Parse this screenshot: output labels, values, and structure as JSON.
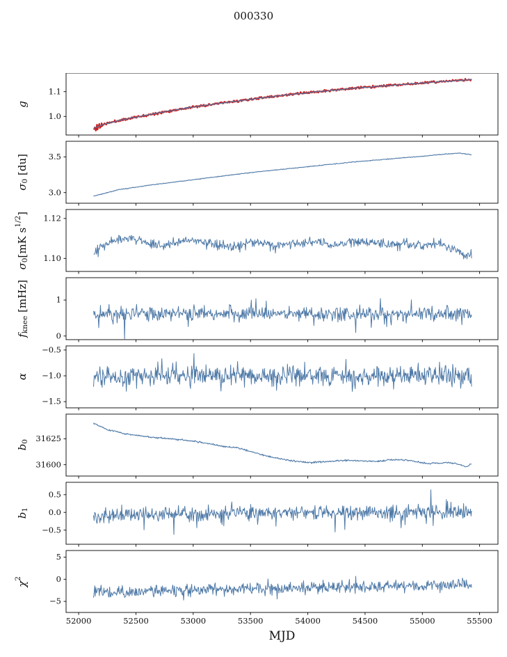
{
  "chart_data": {
    "type": "line",
    "title": "000330",
    "xlabel": "MJD",
    "grid": false,
    "legend": "none",
    "colors": {
      "line": "#4e79a7",
      "red": "#cc1f1f",
      "frame": "#000000"
    },
    "xlim": [
      51890,
      55660
    ],
    "xticks": [
      {
        "v": 52000,
        "label": "52000"
      },
      {
        "v": 52500,
        "label": "52500"
      },
      {
        "v": 53000,
        "label": "53000"
      },
      {
        "v": 53500,
        "label": "53500"
      },
      {
        "v": 54000,
        "label": "54000"
      },
      {
        "v": 54500,
        "label": "54500"
      },
      {
        "v": 55000,
        "label": "55000"
      },
      {
        "v": 55500,
        "label": "55500"
      }
    ],
    "panels": [
      {
        "name": "g",
        "ylabel": {
          "base": "g"
        },
        "ylim": [
          0.925,
          1.175
        ],
        "yticks": [
          {
            "v": 1.0,
            "label": "1.0"
          },
          {
            "v": 1.1,
            "label": "1.1"
          }
        ],
        "series": [
          {
            "name": "data",
            "color": "#cc1f1f",
            "lw": 2.2,
            "seed": 11,
            "amp": 0.0025,
            "amp_start": 0.009,
            "amp_start_until": 52215,
            "base": [
              [
                52130,
                0.948
              ],
              [
                52200,
                0.966
              ],
              [
                52300,
                0.978
              ],
              [
                52450,
                0.993
              ],
              [
                52600,
                1.006
              ],
              [
                52800,
                1.023
              ],
              [
                53000,
                1.038
              ],
              [
                53200,
                1.051
              ],
              [
                53400,
                1.063
              ],
              [
                53600,
                1.075
              ],
              [
                53800,
                1.086
              ],
              [
                54000,
                1.096
              ],
              [
                54200,
                1.105
              ],
              [
                54400,
                1.114
              ],
              [
                54600,
                1.121
              ],
              [
                54800,
                1.128
              ],
              [
                55000,
                1.135
              ],
              [
                55150,
                1.14
              ],
              [
                55300,
                1.145
              ],
              [
                55430,
                1.148
              ]
            ]
          },
          {
            "name": "fit",
            "color": "#4e79a7",
            "lw": 1.1,
            "seed": 12,
            "amp": 0.0012,
            "base": [
              [
                52130,
                0.952
              ],
              [
                52200,
                0.966
              ],
              [
                52300,
                0.978
              ],
              [
                52450,
                0.993
              ],
              [
                52600,
                1.006
              ],
              [
                52800,
                1.023
              ],
              [
                53000,
                1.038
              ],
              [
                53200,
                1.051
              ],
              [
                53400,
                1.063
              ],
              [
                53600,
                1.075
              ],
              [
                53800,
                1.086
              ],
              [
                54000,
                1.096
              ],
              [
                54200,
                1.105
              ],
              [
                54400,
                1.114
              ],
              [
                54600,
                1.121
              ],
              [
                54800,
                1.128
              ],
              [
                55000,
                1.135
              ],
              [
                55150,
                1.14
              ],
              [
                55300,
                1.145
              ],
              [
                55430,
                1.148
              ]
            ]
          }
        ]
      },
      {
        "name": "sigma0_du",
        "ylabel": {
          "base": "σ",
          "sub": "0",
          "mid": " [du]"
        },
        "ylim": [
          2.85,
          3.72
        ],
        "yticks": [
          {
            "v": 3.0,
            "label": "3.0"
          },
          {
            "v": 3.5,
            "label": "3.5"
          }
        ],
        "series": [
          {
            "name": "sigma0",
            "color": "#4e79a7",
            "lw": 1.1,
            "seed": 21,
            "amp": 0.003,
            "base": [
              [
                52130,
                2.95
              ],
              [
                52350,
                3.04
              ],
              [
                52600,
                3.1
              ],
              [
                52900,
                3.16
              ],
              [
                53200,
                3.22
              ],
              [
                53500,
                3.28
              ],
              [
                53800,
                3.33
              ],
              [
                54100,
                3.38
              ],
              [
                54400,
                3.43
              ],
              [
                54700,
                3.47
              ],
              [
                55000,
                3.51
              ],
              [
                55200,
                3.54
              ],
              [
                55320,
                3.555
              ],
              [
                55430,
                3.53
              ]
            ]
          }
        ]
      },
      {
        "name": "sigma0_mks",
        "ylabel": {
          "base": "σ",
          "sub": "0",
          "mid": "[mK s",
          "sup": "1/2",
          "tail": "]"
        },
        "ylim": [
          1.0935,
          1.1245
        ],
        "yticks": [
          {
            "v": 1.1,
            "label": "1.10"
          },
          {
            "v": 1.12,
            "label": "1.12"
          }
        ],
        "series": [
          {
            "name": "sigma0",
            "color": "#4e79a7",
            "lw": 1.0,
            "seed": 31,
            "amp": 0.0013,
            "spike_prob": 0.03,
            "spike_amp": 0.004,
            "spike_dir": -1,
            "base": [
              [
                52130,
                1.1015
              ],
              [
                52200,
                1.106
              ],
              [
                52300,
                1.1095
              ],
              [
                52450,
                1.1105
              ],
              [
                52600,
                1.108
              ],
              [
                52750,
                1.106
              ],
              [
                52900,
                1.1085
              ],
              [
                53050,
                1.109
              ],
              [
                53200,
                1.107
              ],
              [
                53350,
                1.1055
              ],
              [
                53500,
                1.1085
              ],
              [
                53650,
                1.107
              ],
              [
                53800,
                1.1065
              ],
              [
                53950,
                1.108
              ],
              [
                54100,
                1.1085
              ],
              [
                54250,
                1.107
              ],
              [
                54400,
                1.108
              ],
              [
                54550,
                1.1085
              ],
              [
                54700,
                1.107
              ],
              [
                54850,
                1.1075
              ],
              [
                55000,
                1.1065
              ],
              [
                55150,
                1.108
              ],
              [
                55280,
                1.105
              ],
              [
                55370,
                1.102
              ],
              [
                55430,
                1.1015
              ]
            ]
          }
        ]
      },
      {
        "name": "fknee",
        "ylabel": {
          "base": "f",
          "sub": "knee",
          "mid": " [mHz]"
        },
        "ylim": [
          -0.1,
          1.62
        ],
        "yticks": [
          {
            "v": 0,
            "label": "0"
          },
          {
            "v": 1,
            "label": "1"
          }
        ],
        "series": [
          {
            "name": "fknee",
            "color": "#4e79a7",
            "lw": 1.0,
            "seed": 41,
            "amp": 0.12,
            "spike_prob": 0.04,
            "spike_amp": 0.45,
            "base": [
              [
                52130,
                0.6
              ],
              [
                53000,
                0.63
              ],
              [
                54000,
                0.62
              ],
              [
                55430,
                0.63
              ]
            ]
          }
        ]
      },
      {
        "name": "alpha",
        "ylabel": {
          "base": "α"
        },
        "ylim": [
          -1.62,
          -0.42
        ],
        "yticks": [
          {
            "v": -1.5,
            "label": "−1.5"
          },
          {
            "v": -1.0,
            "label": "−1.0"
          },
          {
            "v": -0.5,
            "label": "−0.5"
          }
        ],
        "series": [
          {
            "name": "alpha",
            "color": "#4e79a7",
            "lw": 1.0,
            "seed": 51,
            "amp": 0.11,
            "spike_prob": 0.05,
            "spike_amp": 0.3,
            "base": [
              [
                52130,
                -1.0
              ],
              [
                55430,
                -1.0
              ]
            ]
          }
        ]
      },
      {
        "name": "b0",
        "ylabel": {
          "base": "b",
          "sub": "0"
        },
        "ylim": [
          31589,
          31649
        ],
        "yticks": [
          {
            "v": 31600,
            "label": "31600"
          },
          {
            "v": 31625,
            "label": "31625"
          }
        ],
        "series": [
          {
            "name": "b0",
            "color": "#4e79a7",
            "lw": 1.1,
            "seed": 61,
            "amp": 0.45,
            "base": [
              [
                52130,
                31640
              ],
              [
                52250,
                31634
              ],
              [
                52400,
                31630
              ],
              [
                52600,
                31627
              ],
              [
                52800,
                31625
              ],
              [
                53000,
                31623
              ],
              [
                53100,
                31621
              ],
              [
                53250,
                31618
              ],
              [
                53400,
                31616
              ],
              [
                53550,
                31611
              ],
              [
                53700,
                31607
              ],
              [
                53850,
                31604
              ],
              [
                54000,
                31602
              ],
              [
                54150,
                31603
              ],
              [
                54300,
                31604
              ],
              [
                54450,
                31604
              ],
              [
                54600,
                31603
              ],
              [
                54750,
                31605
              ],
              [
                54900,
                31604
              ],
              [
                55050,
                31601
              ],
              [
                55200,
                31602
              ],
              [
                55300,
                31601
              ],
              [
                55380,
                31598
              ],
              [
                55430,
                31601
              ]
            ]
          }
        ]
      },
      {
        "name": "b1",
        "ylabel": {
          "base": "b",
          "sub": "1"
        },
        "ylim": [
          -0.9,
          0.85
        ],
        "yticks": [
          {
            "v": -0.5,
            "label": "−0.5"
          },
          {
            "v": 0.0,
            "label": "0.0"
          },
          {
            "v": 0.5,
            "label": "0.5"
          }
        ],
        "series": [
          {
            "name": "b1",
            "color": "#4e79a7",
            "lw": 1.0,
            "seed": 71,
            "amp": 0.11,
            "spike_prob": 0.04,
            "spike_amp": 0.45,
            "base": [
              [
                52130,
                -0.12
              ],
              [
                52400,
                -0.1
              ],
              [
                52700,
                -0.05
              ],
              [
                53200,
                -0.02
              ],
              [
                54000,
                0.0
              ],
              [
                55430,
                0.0
              ]
            ]
          }
        ]
      },
      {
        "name": "chi2",
        "ylabel": {
          "base": "χ",
          "sup": "2"
        },
        "ylim": [
          -7.5,
          6.5
        ],
        "yticks": [
          {
            "v": -5,
            "label": "−5"
          },
          {
            "v": 0,
            "label": "0"
          },
          {
            "v": 5,
            "label": "5"
          }
        ],
        "series": [
          {
            "name": "chi2",
            "color": "#4e79a7",
            "lw": 1.0,
            "seed": 81,
            "amp": 0.75,
            "spike_prob": 0.02,
            "spike_amp": 2.0,
            "base": [
              [
                52130,
                -2.3
              ],
              [
                52300,
                -3.1
              ],
              [
                52600,
                -2.7
              ],
              [
                53000,
                -2.4
              ],
              [
                53500,
                -2.2
              ],
              [
                54000,
                -2.0
              ],
              [
                54500,
                -1.8
              ],
              [
                55000,
                -1.5
              ],
              [
                55430,
                -1.3
              ]
            ]
          }
        ]
      }
    ]
  }
}
